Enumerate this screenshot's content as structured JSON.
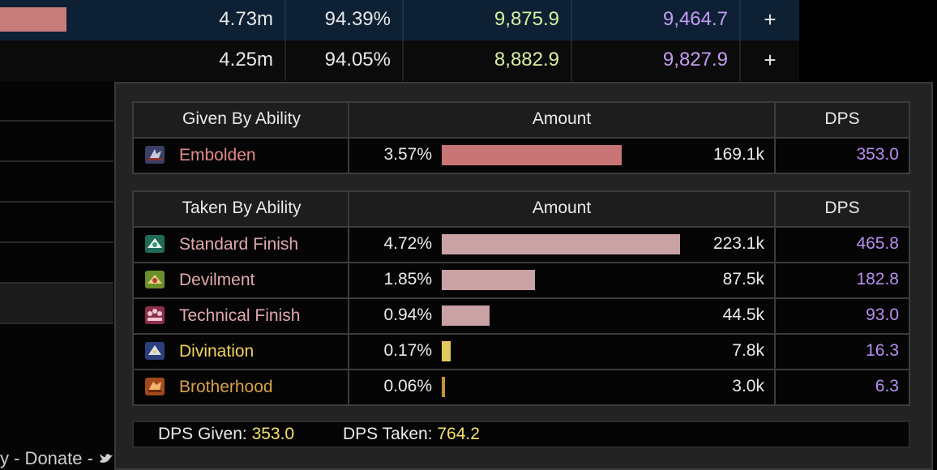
{
  "background_table": {
    "rows": [
      {
        "total": "4.73m",
        "percent": "94.39%",
        "dps": "9,875.9",
        "rdps": "9,464.7",
        "action": "+",
        "bar_fraction": 1
      },
      {
        "total": "4.25m",
        "percent": "94.05%",
        "dps": "8,882.9",
        "rdps": "9,827.9",
        "action": "+"
      }
    ],
    "footer": "y - Donate -"
  },
  "given_table": {
    "headers": {
      "name": "Given By Ability",
      "amount": "Amount",
      "dps": "DPS"
    },
    "rows": [
      {
        "icon": "embolden-icon",
        "name": "Embolden",
        "name_color": "#e28a8a",
        "percent": "3.57%",
        "bar_value": 3.57,
        "bar_color": "#c97475",
        "amount": "169.1k",
        "dps": "353.0"
      }
    ]
  },
  "taken_table": {
    "headers": {
      "name": "Taken By Ability",
      "amount": "Amount",
      "dps": "DPS"
    },
    "rows": [
      {
        "icon": "standard-finish-icon",
        "name": "Standard Finish",
        "name_color": "#e0a8ad",
        "percent": "4.72%",
        "bar_value": 4.72,
        "bar_color": "#c9a2a3",
        "amount": "223.1k",
        "dps": "465.8"
      },
      {
        "icon": "devilment-icon",
        "name": "Devilment",
        "name_color": "#e0a8ad",
        "percent": "1.85%",
        "bar_value": 1.85,
        "bar_color": "#c9a2a3",
        "amount": "87.5k",
        "dps": "182.8"
      },
      {
        "icon": "technical-finish-icon",
        "name": "Technical Finish",
        "name_color": "#e0a8ad",
        "percent": "0.94%",
        "bar_value": 0.94,
        "bar_color": "#c9a2a3",
        "amount": "44.5k",
        "dps": "93.0"
      },
      {
        "icon": "divination-icon",
        "name": "Divination",
        "name_color": "#f0d35a",
        "percent": "0.17%",
        "bar_value": 0.17,
        "bar_color": "#e2c95b",
        "amount": "7.8k",
        "dps": "16.3"
      },
      {
        "icon": "brotherhood-icon",
        "name": "Brotherhood",
        "name_color": "#d9a04a",
        "percent": "0.06%",
        "bar_value": 0.06,
        "bar_color": "#c7913f",
        "amount": "3.0k",
        "dps": "6.3"
      }
    ]
  },
  "summary": {
    "given_label": "DPS Given:",
    "given_value": "353.0",
    "taken_label": "DPS Taken:",
    "taken_value": "764.2"
  },
  "colors": {
    "dps_value": "#b68ff0",
    "summary_value": "#f5e16a",
    "bg_dps": "#d9f0a1",
    "bg_rdps": "#c49cf3"
  }
}
